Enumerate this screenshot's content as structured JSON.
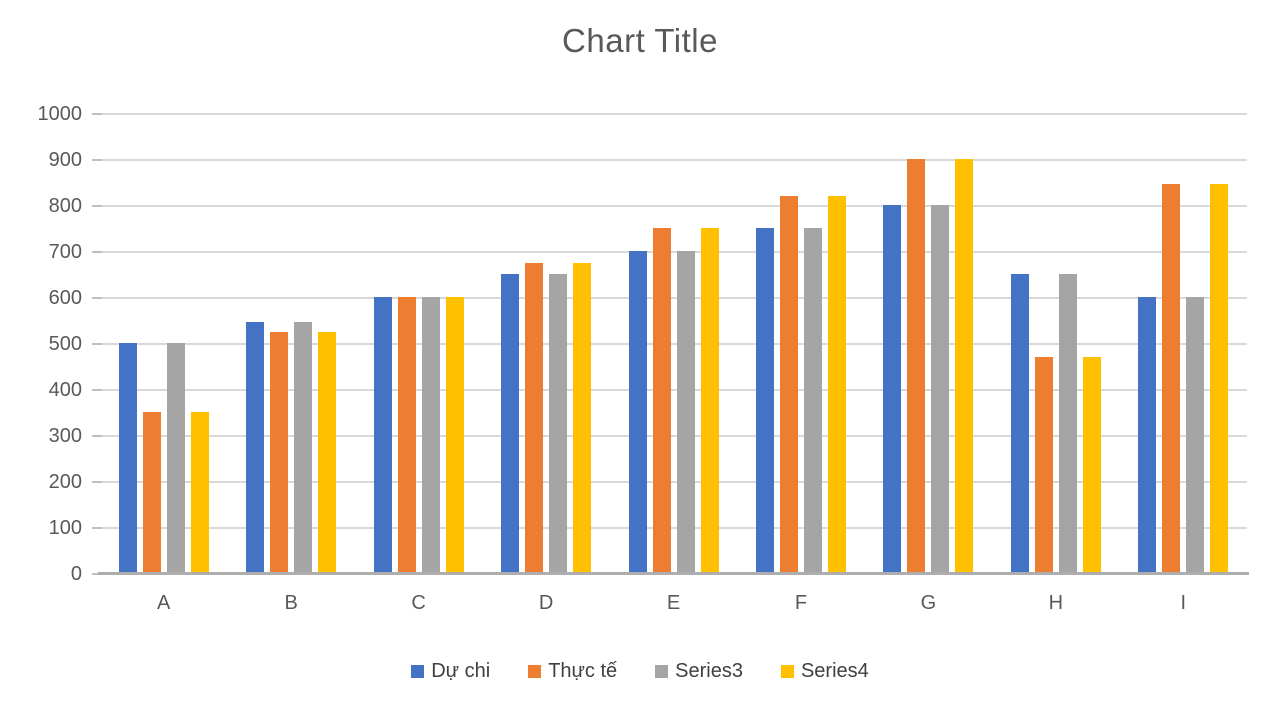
{
  "chart_data": {
    "type": "bar",
    "title": "Chart Title",
    "categories": [
      "A",
      "B",
      "C",
      "D",
      "E",
      "F",
      "G",
      "H",
      "I"
    ],
    "series": [
      {
        "name": "Dự chi",
        "color": "#4472C4",
        "values": [
          500,
          545,
          600,
          650,
          700,
          750,
          800,
          650,
          600
        ]
      },
      {
        "name": "Thực tế",
        "color": "#ED7D31",
        "values": [
          350,
          525,
          600,
          675,
          750,
          820,
          900,
          470,
          845
        ]
      },
      {
        "name": "Series3",
        "color": "#A5A5A5",
        "values": [
          500,
          545,
          600,
          650,
          700,
          750,
          800,
          650,
          600
        ]
      },
      {
        "name": "Series4",
        "color": "#FFC000",
        "values": [
          350,
          525,
          600,
          675,
          750,
          820,
          900,
          470,
          845
        ]
      }
    ],
    "y_axis": {
      "min": 0,
      "max": 1000,
      "step": 100,
      "tick_labels": [
        "0",
        "100",
        "200",
        "300",
        "400",
        "500",
        "600",
        "700",
        "800",
        "900",
        "1000"
      ]
    },
    "grid": true,
    "legend_position": "bottom",
    "colors": {
      "grid": "#D9D9D9",
      "axis": "#AEAEAE",
      "axis_text": "#595959",
      "title_text": "#595959",
      "legend_text": "#404040",
      "background": "#FFFFFF"
    }
  }
}
